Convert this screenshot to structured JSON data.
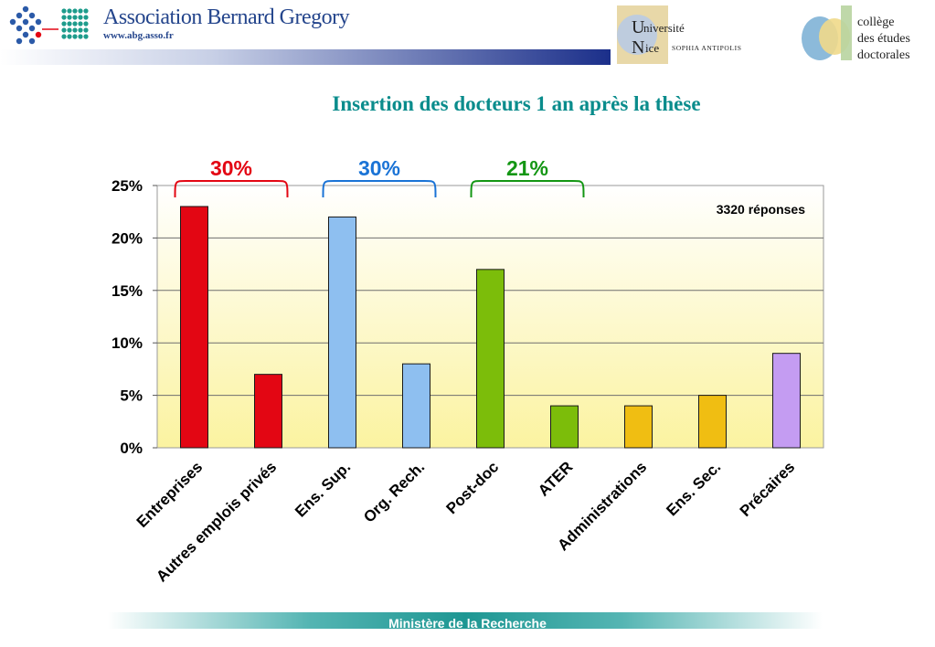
{
  "header": {
    "abg_name": "Association Bernard Gregory",
    "abg_url": "www.abg.asso.fr",
    "unice_line1": "niversité",
    "unice_line2": "ice",
    "unice_sophia": "SOPHIA ANTIPOLIS",
    "cde_line1": "collège",
    "cde_line2": "des études",
    "cde_line3": "doctorales",
    "colors": {
      "abg_blue": "#24458c",
      "title_teal": "#0a8c8c"
    }
  },
  "title": "Insertion des docteurs 1 an après la thèse",
  "footer": {
    "text": "Ministère de la Recherche"
  },
  "chart_data": {
    "type": "bar",
    "categories": [
      "Entreprises",
      "Autres emplois privés",
      "Ens. Sup.",
      "Org. Rech.",
      "Post-doc",
      "ATER",
      "Administrations",
      "Ens. Sec.",
      "Précaires"
    ],
    "values": [
      23,
      7,
      22,
      8,
      17,
      4,
      4,
      5,
      9
    ],
    "colors": [
      "#e30613",
      "#e30613",
      "#8ebff0",
      "#8ebff0",
      "#7cbd0a",
      "#7cbd0a",
      "#f0be12",
      "#f0be12",
      "#c49cf2"
    ],
    "yticks": [
      "0%",
      "5%",
      "10%",
      "15%",
      "20%",
      "25%"
    ],
    "ylim": [
      0,
      25
    ],
    "grid": true,
    "annotation": "3320 réponses",
    "groups": [
      {
        "label": "30%",
        "color": "#e30613",
        "from": 0,
        "to": 1
      },
      {
        "label": "30%",
        "color": "#1a73d6",
        "from": 2,
        "to": 3
      },
      {
        "label": "21%",
        "color": "#139613",
        "from": 4,
        "to": 5
      }
    ]
  }
}
